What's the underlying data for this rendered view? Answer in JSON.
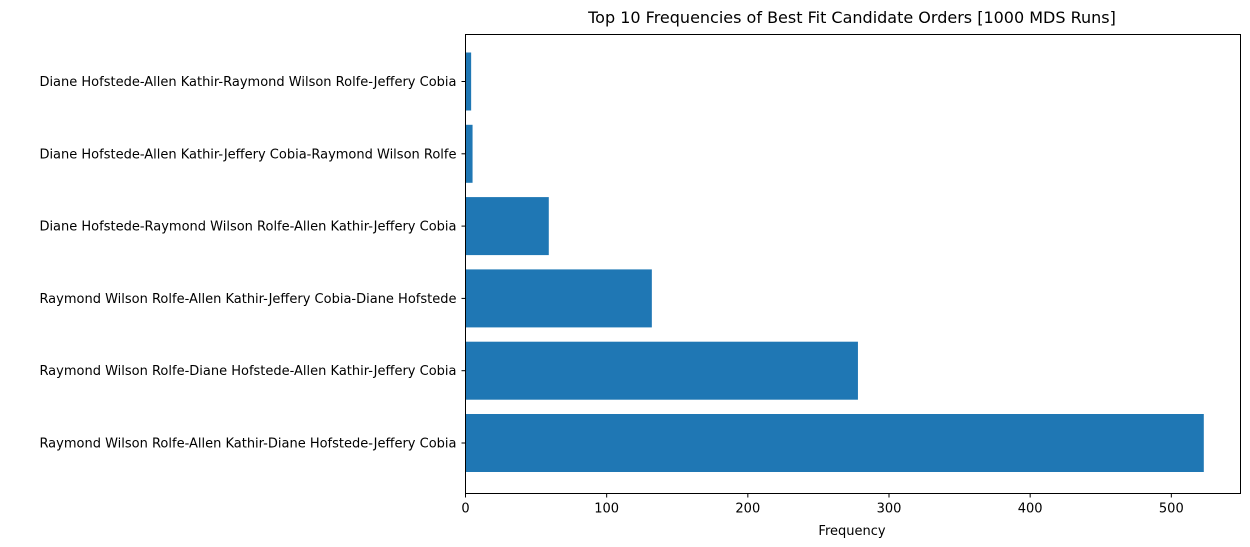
{
  "chart_data": {
    "type": "bar",
    "orientation": "horizontal",
    "title": "Top 10 Frequencies of Best Fit Candidate Orders [1000 MDS Runs]",
    "xlabel": "Frequency",
    "ylabel": "",
    "categories": [
      "Raymond Wilson Rolfe-Allen Kathir-Diane Hofstede-Jeffery Cobia",
      "Raymond Wilson Rolfe-Diane Hofstede-Allen Kathir-Jeffery Cobia",
      "Raymond Wilson Rolfe-Allen Kathir-Jeffery Cobia-Diane Hofstede",
      "Diane Hofstede-Raymond Wilson Rolfe-Allen Kathir-Jeffery Cobia",
      "Diane Hofstede-Allen Kathir-Jeffery Cobia-Raymond Wilson Rolfe",
      "Diane Hofstede-Allen Kathir-Raymond Wilson Rolfe-Jeffery Cobia"
    ],
    "values": [
      523,
      278,
      132,
      59,
      5,
      4
    ],
    "xlim": [
      0,
      549
    ],
    "xticks": [
      0,
      100,
      200,
      300,
      400,
      500
    ],
    "bar_color": "#1f77b4",
    "grid": false
  }
}
